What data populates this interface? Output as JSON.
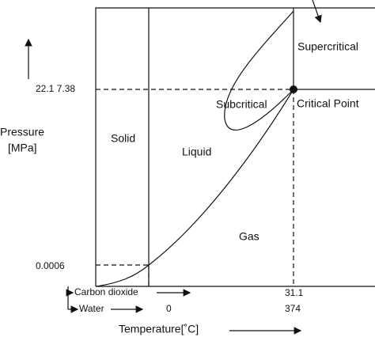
{
  "regions": {
    "supercritical": "Supercritical",
    "subcritical": "Subcritical",
    "critical_point": "Critical Point",
    "solid": "Solid",
    "liquid": "Liquid",
    "gas": "Gas"
  },
  "y_axis": {
    "title_line1": "Pressure",
    "title_line2": "[MPa]",
    "critical_pressures": "22.1  7.38",
    "triple_pressure": "0.0006"
  },
  "x_axis": {
    "title": "Temperature[˚C]",
    "row1_name": "Carbon dioxide",
    "row2_name": "Water",
    "row1_critical": "31.1",
    "row2_triple": "0",
    "row2_critical": "374"
  }
}
